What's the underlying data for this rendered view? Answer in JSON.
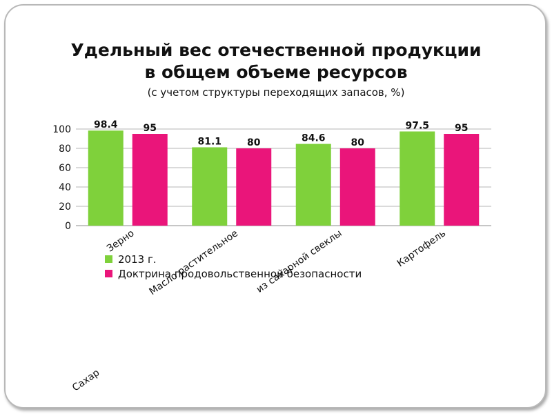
{
  "slide": {
    "title_line1": "Удельный вес отечественной продукции",
    "title_line2": "в общем объеме ресурсов",
    "subtitle": "(с учетом структуры переходящих запасов, %)"
  },
  "chart_data": {
    "type": "bar",
    "categories": [
      "Зерно",
      "Масло растительное",
      "Сахар из сахарной свеклы",
      "Картофель"
    ],
    "category_labels_rendered": [
      "Зерно",
      "Масло растительное",
      "из сахарной свеклы",
      "Картофель"
    ],
    "extra_label": "Сахар",
    "series": [
      {
        "name": "2013 г.",
        "values": [
          98.4,
          81.1,
          84.6,
          97.5
        ],
        "labels": [
          "98.4",
          "81.1",
          "84.6",
          "97.5"
        ],
        "color": "#7fd13b"
      },
      {
        "name": "Доктрина продовольственной безопасности",
        "values": [
          95,
          80,
          80,
          95
        ],
        "labels": [
          "95",
          "80",
          "80",
          "95"
        ],
        "color": "#ea157a"
      }
    ],
    "ylim": [
      0,
      100
    ],
    "yticks": [
      "0",
      "20",
      "40",
      "60",
      "80",
      "100"
    ],
    "grid": true,
    "legend_position": "bottom-left"
  }
}
